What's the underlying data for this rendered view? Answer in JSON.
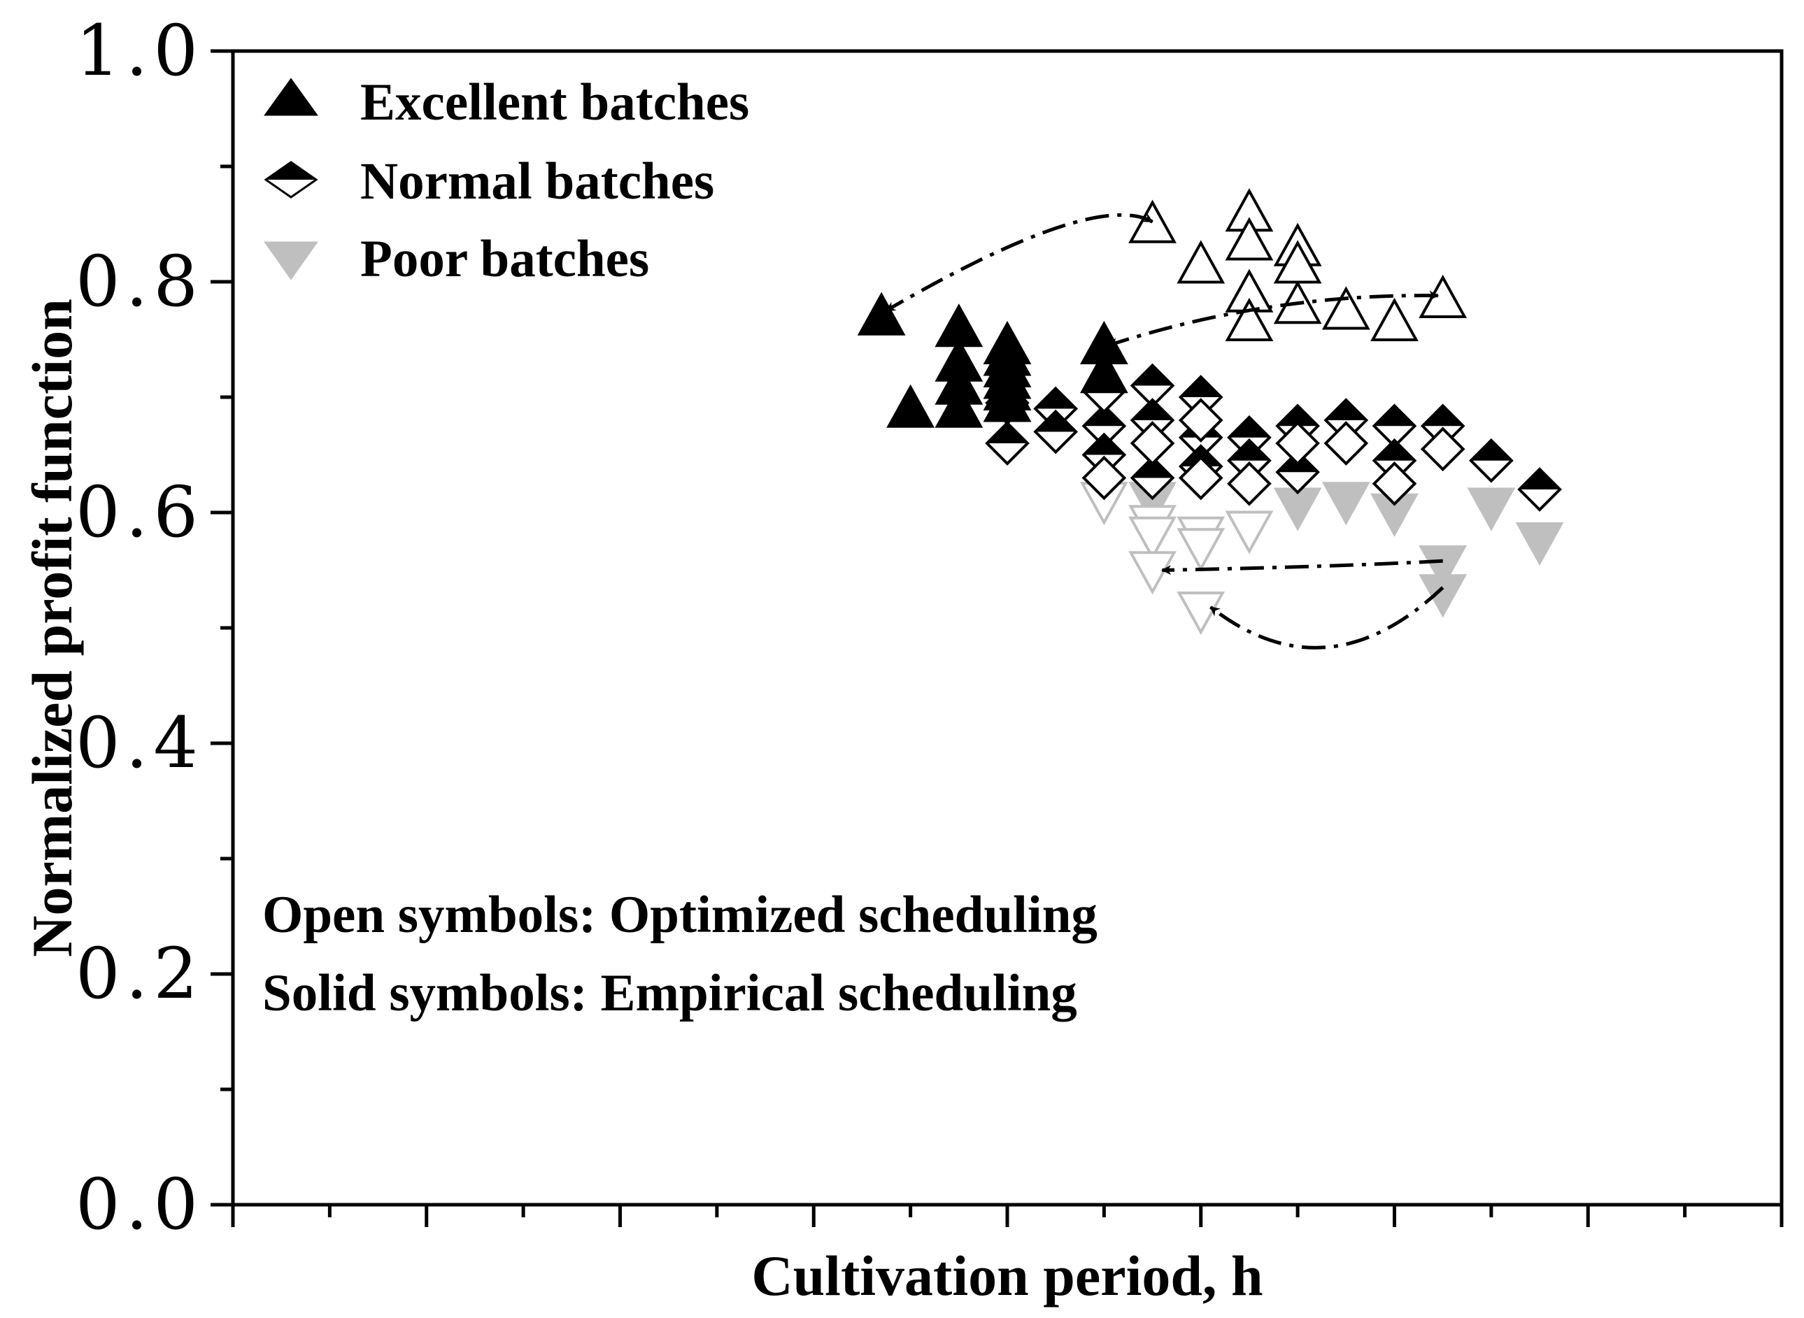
{
  "chart_data": {
    "type": "scatter",
    "title": "",
    "xlabel": "Cultivation period, h",
    "ylabel": "Normalized profit function",
    "xlim": [
      0,
      16
    ],
    "ylim": [
      0.0,
      1.0
    ],
    "x_tick_labels": [],
    "y_tick_labels": [
      "0.0",
      "0.2",
      "0.4",
      "0.6",
      "0.8",
      "1.0"
    ],
    "y_ticks": [
      0.0,
      0.2,
      0.4,
      0.6,
      0.8,
      1.0
    ],
    "grid": false,
    "legend_position": "top-left",
    "legend": [
      {
        "label": "Excellent batches",
        "marker": "triangle-up",
        "color": "#000000"
      },
      {
        "label": "Normal batches",
        "marker": "diamond-half",
        "color": "#000000"
      },
      {
        "label": "Poor batches",
        "marker": "triangle-down",
        "color": "#bfbfbf"
      }
    ],
    "notes": [
      "Open symbols: Optimized scheduling",
      "Solid symbols: Empirical scheduling"
    ],
    "series": [
      {
        "name": "Excellent batches",
        "scheduling": "Empirical scheduling",
        "marker": "triangle-up",
        "fill": "solid",
        "color": "#000000",
        "points": [
          [
            6.7,
            0.77
          ],
          [
            7.0,
            0.69
          ],
          [
            7.5,
            0.76
          ],
          [
            7.5,
            0.73
          ],
          [
            7.5,
            0.71
          ],
          [
            7.5,
            0.69
          ],
          [
            8.0,
            0.745
          ],
          [
            8.0,
            0.735
          ],
          [
            8.0,
            0.725
          ],
          [
            8.0,
            0.715
          ],
          [
            8.0,
            0.705
          ],
          [
            8.0,
            0.695
          ],
          [
            9.0,
            0.745
          ],
          [
            9.0,
            0.72
          ]
        ]
      },
      {
        "name": "Excellent batches",
        "scheduling": "Optimized scheduling",
        "marker": "triangle-up",
        "fill": "open",
        "color": "#000000",
        "points": [
          [
            9.5,
            0.85
          ],
          [
            10.0,
            0.815
          ],
          [
            10.5,
            0.86
          ],
          [
            10.5,
            0.835
          ],
          [
            10.5,
            0.79
          ],
          [
            10.5,
            0.765
          ],
          [
            11.0,
            0.83
          ],
          [
            11.0,
            0.815
          ],
          [
            11.0,
            0.78
          ],
          [
            11.5,
            0.775
          ],
          [
            12.0,
            0.765
          ],
          [
            12.5,
            0.785
          ]
        ]
      },
      {
        "name": "Normal batches",
        "scheduling": "Empirical scheduling",
        "marker": "diamond-half",
        "fill": "solid",
        "color": "#000000",
        "points": [
          [
            8.0,
            0.66
          ],
          [
            8.5,
            0.69
          ],
          [
            8.5,
            0.67
          ],
          [
            9.0,
            0.675
          ],
          [
            9.0,
            0.65
          ],
          [
            9.5,
            0.71
          ],
          [
            9.5,
            0.68
          ],
          [
            9.5,
            0.63
          ],
          [
            10.0,
            0.7
          ],
          [
            10.0,
            0.665
          ],
          [
            10.0,
            0.64
          ],
          [
            10.5,
            0.665
          ],
          [
            10.5,
            0.645
          ],
          [
            11.0,
            0.675
          ],
          [
            11.0,
            0.635
          ],
          [
            11.5,
            0.68
          ],
          [
            12.0,
            0.675
          ],
          [
            12.0,
            0.645
          ],
          [
            12.5,
            0.675
          ],
          [
            13.0,
            0.645
          ],
          [
            13.5,
            0.62
          ]
        ]
      },
      {
        "name": "Normal batches",
        "scheduling": "Optimized scheduling",
        "marker": "diamond-half",
        "fill": "open",
        "color": "#000000",
        "points": [
          [
            8.0,
            0.695
          ],
          [
            9.0,
            0.705
          ],
          [
            9.0,
            0.63
          ],
          [
            9.5,
            0.66
          ],
          [
            10.0,
            0.68
          ],
          [
            10.0,
            0.63
          ],
          [
            10.5,
            0.625
          ],
          [
            11.0,
            0.66
          ],
          [
            11.5,
            0.66
          ],
          [
            12.0,
            0.625
          ],
          [
            12.5,
            0.655
          ]
        ]
      },
      {
        "name": "Poor batches",
        "scheduling": "Empirical scheduling",
        "marker": "triangle-down",
        "fill": "solid",
        "color": "#bfbfbf",
        "points": [
          [
            9.5,
            0.61
          ],
          [
            11.0,
            0.605
          ],
          [
            11.5,
            0.61
          ],
          [
            12.0,
            0.6
          ],
          [
            12.5,
            0.555
          ],
          [
            12.5,
            0.53
          ],
          [
            13.0,
            0.605
          ],
          [
            13.5,
            0.575
          ]
        ]
      },
      {
        "name": "Poor batches",
        "scheduling": "Optimized scheduling",
        "marker": "triangle-down",
        "fill": "open",
        "color": "#bfbfbf",
        "points": [
          [
            9.0,
            0.61
          ],
          [
            9.5,
            0.59
          ],
          [
            9.5,
            0.58
          ],
          [
            10.0,
            0.58
          ],
          [
            10.0,
            0.57
          ],
          [
            10.5,
            0.585
          ],
          [
            9.5,
            0.55
          ],
          [
            10.0,
            0.515
          ]
        ]
      }
    ],
    "arrows": [
      {
        "from": [
          9.5,
          0.852
        ],
        "to": [
          6.75,
          0.775
        ],
        "bend": [
          8.9,
          0.88
        ],
        "heads": [
          "start",
          "end"
        ]
      },
      {
        "from": [
          12.45,
          0.788
        ],
        "to": [
          9.05,
          0.745
        ],
        "bend": [
          10.7,
          0.79
        ],
        "heads": [
          "start",
          "end"
        ]
      },
      {
        "from": [
          12.5,
          0.558
        ],
        "to": [
          9.6,
          0.55
        ],
        "bend": [
          11.4,
          0.553
        ],
        "heads": [
          "end"
        ]
      },
      {
        "from": [
          12.5,
          0.535
        ],
        "to": [
          10.1,
          0.518
        ],
        "bend": [
          11.3,
          0.44
        ],
        "heads": [
          "end"
        ]
      }
    ]
  }
}
